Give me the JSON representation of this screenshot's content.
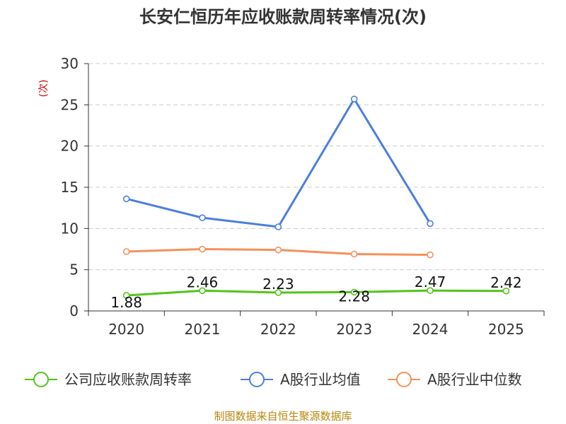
{
  "chart_data": {
    "type": "line",
    "title": "长安仁恒历年应收账款周转率情况(次)",
    "ylabel": "(次)",
    "xlabel": "",
    "x": [
      "2020",
      "2021",
      "2022",
      "2023",
      "2024",
      "2025"
    ],
    "ylim": [
      0,
      30
    ],
    "yticks": [
      0,
      5,
      10,
      15,
      20,
      25,
      30
    ],
    "grid": true,
    "legend_position": "bottom",
    "series": [
      {
        "name": "公司应收账款周转率",
        "color": "#52c41a",
        "values": [
          1.88,
          2.46,
          2.23,
          2.28,
          2.47,
          2.42
        ],
        "labels": [
          "1.88",
          "2.46",
          "2.23",
          "2.28",
          "2.47",
          "2.42"
        ]
      },
      {
        "name": "A股行业均值",
        "color": "#4a7fdc",
        "values": [
          13.6,
          11.3,
          10.2,
          25.7,
          10.6,
          null
        ]
      },
      {
        "name": "A股行业中位数",
        "color": "#f4915a",
        "values": [
          7.2,
          7.5,
          7.4,
          6.9,
          6.8,
          null
        ]
      }
    ]
  },
  "source_note": "制图数据来自恒生聚源数据库"
}
